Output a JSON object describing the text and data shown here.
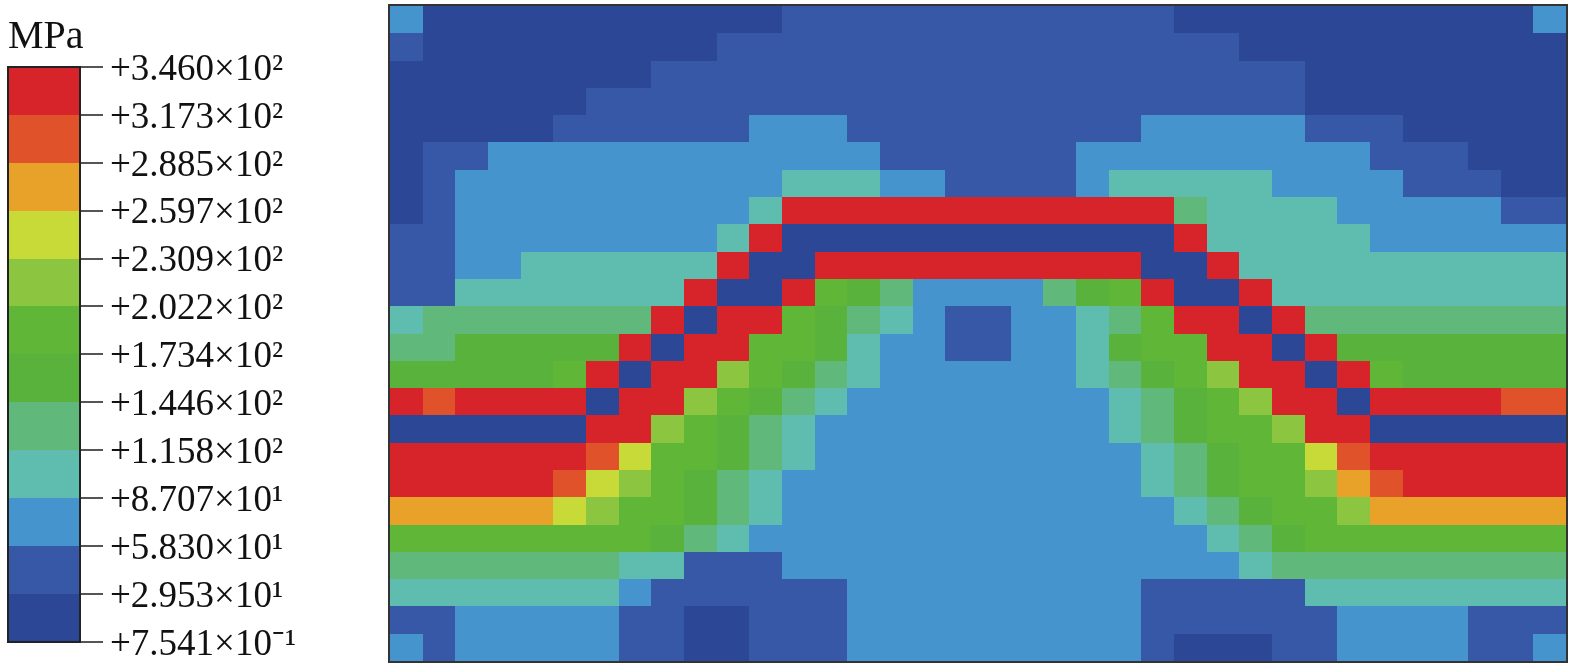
{
  "chart_data": {
    "type": "heatmap",
    "clabel": "MPa",
    "clim": [
      0.7541,
      346.0
    ],
    "cticks": [
      {
        "value": 0.7541,
        "label": "+7.541×10⁻¹"
      },
      {
        "value": 29.53,
        "label": "+2.953×10¹"
      },
      {
        "value": 58.3,
        "label": "+5.830×10¹"
      },
      {
        "value": 87.07,
        "label": "+8.707×10¹"
      },
      {
        "value": 115.8,
        "label": "+1.158×10²"
      },
      {
        "value": 144.6,
        "label": "+1.446×10²"
      },
      {
        "value": 173.4,
        "label": "+1.734×10²"
      },
      {
        "value": 202.2,
        "label": "+2.022×10²"
      },
      {
        "value": 230.9,
        "label": "+2.309×10²"
      },
      {
        "value": 259.7,
        "label": "+2.597×10²"
      },
      {
        "value": 288.5,
        "label": "+2.885×10²"
      },
      {
        "value": 317.3,
        "label": "+3.173×10²"
      },
      {
        "value": 346.0,
        "label": "+3.460×10²"
      }
    ],
    "categories": [
      null,
      null,
      null,
      null,
      null,
      null,
      null,
      null,
      null,
      null,
      null,
      null,
      null,
      null,
      null,
      null,
      null,
      null,
      null,
      null,
      null,
      null,
      null,
      null,
      null,
      null,
      null,
      null,
      null,
      null,
      null,
      null,
      null,
      null,
      null,
      null
    ],
    "y_categories": [
      null,
      null,
      null,
      null,
      null,
      null,
      null,
      null,
      null,
      null,
      null,
      null,
      null,
      null,
      null,
      null,
      null,
      null,
      null,
      null,
      null,
      null,
      null,
      null
    ],
    "cells": [
      [
        73,
        15,
        15,
        15,
        15,
        15,
        15,
        15,
        15,
        15,
        15,
        15,
        44,
        44,
        44,
        44,
        44,
        44,
        44,
        44,
        44,
        44,
        44,
        44,
        15,
        15,
        15,
        15,
        15,
        15,
        15,
        15,
        15,
        15,
        15,
        73
      ],
      [
        44,
        15,
        15,
        15,
        15,
        15,
        15,
        15,
        15,
        15,
        44,
        44,
        44,
        44,
        44,
        44,
        44,
        44,
        44,
        44,
        44,
        44,
        44,
        44,
        44,
        44,
        15,
        15,
        15,
        15,
        15,
        15,
        15,
        15,
        15,
        15
      ],
      [
        15,
        15,
        15,
        15,
        15,
        15,
        15,
        15,
        44,
        44,
        44,
        44,
        44,
        44,
        44,
        44,
        44,
        44,
        44,
        44,
        44,
        44,
        44,
        44,
        44,
        44,
        44,
        44,
        15,
        15,
        15,
        15,
        15,
        15,
        15,
        15
      ],
      [
        15,
        15,
        15,
        15,
        15,
        15,
        44,
        44,
        44,
        44,
        44,
        44,
        44,
        44,
        44,
        44,
        44,
        44,
        44,
        44,
        44,
        44,
        44,
        44,
        44,
        44,
        44,
        44,
        15,
        15,
        15,
        15,
        15,
        15,
        15,
        15
      ],
      [
        15,
        15,
        15,
        15,
        15,
        44,
        44,
        44,
        44,
        44,
        44,
        73,
        73,
        73,
        44,
        44,
        44,
        44,
        44,
        44,
        44,
        44,
        44,
        73,
        73,
        73,
        73,
        73,
        44,
        44,
        44,
        15,
        15,
        15,
        15,
        15
      ],
      [
        15,
        44,
        44,
        73,
        73,
        73,
        73,
        73,
        73,
        73,
        73,
        73,
        73,
        73,
        73,
        44,
        44,
        44,
        44,
        44,
        44,
        73,
        73,
        73,
        73,
        73,
        73,
        73,
        73,
        73,
        44,
        44,
        44,
        15,
        15,
        15
      ],
      [
        15,
        44,
        73,
        73,
        73,
        73,
        73,
        73,
        73,
        73,
        73,
        73,
        101,
        101,
        101,
        73,
        73,
        44,
        44,
        44,
        44,
        73,
        101,
        101,
        101,
        101,
        101,
        73,
        73,
        73,
        73,
        44,
        44,
        44,
        15,
        15
      ],
      [
        15,
        44,
        73,
        73,
        73,
        73,
        73,
        73,
        73,
        73,
        73,
        101,
        332,
        332,
        332,
        332,
        332,
        332,
        332,
        332,
        332,
        332,
        332,
        332,
        130,
        101,
        101,
        101,
        101,
        73,
        73,
        73,
        73,
        73,
        44,
        44
      ],
      [
        44,
        44,
        73,
        73,
        73,
        73,
        73,
        73,
        73,
        73,
        101,
        332,
        15,
        15,
        15,
        15,
        15,
        15,
        15,
        15,
        15,
        15,
        15,
        15,
        332,
        101,
        101,
        101,
        101,
        101,
        73,
        73,
        73,
        73,
        73,
        73
      ],
      [
        44,
        44,
        73,
        73,
        101,
        101,
        101,
        101,
        101,
        101,
        332,
        15,
        15,
        332,
        332,
        332,
        332,
        332,
        332,
        332,
        332,
        332,
        332,
        15,
        15,
        332,
        101,
        101,
        101,
        101,
        101,
        101,
        101,
        101,
        101,
        101
      ],
      [
        44,
        44,
        101,
        101,
        101,
        101,
        101,
        101,
        101,
        332,
        15,
        15,
        332,
        188,
        159,
        130,
        73,
        73,
        73,
        73,
        130,
        159,
        188,
        332,
        15,
        15,
        332,
        101,
        101,
        101,
        101,
        101,
        101,
        101,
        101,
        101
      ],
      [
        101,
        130,
        130,
        130,
        130,
        130,
        130,
        130,
        332,
        15,
        332,
        332,
        188,
        159,
        130,
        101,
        73,
        44,
        44,
        73,
        73,
        101,
        130,
        188,
        332,
        332,
        15,
        332,
        130,
        130,
        130,
        130,
        130,
        130,
        130,
        130
      ],
      [
        130,
        130,
        159,
        159,
        159,
        159,
        159,
        332,
        15,
        332,
        332,
        188,
        188,
        159,
        101,
        73,
        73,
        44,
        44,
        73,
        73,
        101,
        159,
        188,
        188,
        332,
        332,
        15,
        332,
        159,
        159,
        159,
        159,
        159,
        159,
        159
      ],
      [
        159,
        159,
        159,
        159,
        159,
        188,
        332,
        15,
        332,
        332,
        216,
        188,
        159,
        130,
        101,
        73,
        73,
        73,
        73,
        73,
        73,
        101,
        130,
        159,
        188,
        216,
        332,
        332,
        15,
        332,
        188,
        159,
        159,
        159,
        159,
        159
      ],
      [
        332,
        303,
        332,
        332,
        332,
        332,
        15,
        332,
        332,
        216,
        188,
        159,
        130,
        101,
        73,
        73,
        73,
        73,
        73,
        73,
        73,
        73,
        101,
        130,
        159,
        188,
        216,
        332,
        332,
        15,
        332,
        332,
        332,
        332,
        303,
        303
      ],
      [
        15,
        15,
        15,
        15,
        15,
        15,
        332,
        332,
        216,
        188,
        159,
        130,
        101,
        73,
        73,
        73,
        73,
        73,
        73,
        73,
        73,
        73,
        101,
        130,
        159,
        188,
        188,
        216,
        332,
        332,
        15,
        15,
        15,
        15,
        15,
        15
      ],
      [
        332,
        332,
        332,
        332,
        332,
        332,
        303,
        245,
        188,
        188,
        159,
        130,
        101,
        73,
        73,
        73,
        73,
        73,
        73,
        73,
        73,
        73,
        73,
        101,
        130,
        159,
        188,
        188,
        245,
        303,
        332,
        332,
        332,
        332,
        332,
        332
      ],
      [
        332,
        332,
        332,
        332,
        332,
        303,
        245,
        216,
        188,
        159,
        130,
        101,
        73,
        73,
        73,
        73,
        73,
        73,
        73,
        73,
        73,
        73,
        73,
        101,
        130,
        159,
        188,
        188,
        216,
        274,
        303,
        332,
        332,
        332,
        332,
        332
      ],
      [
        274,
        274,
        274,
        274,
        274,
        245,
        216,
        188,
        188,
        159,
        130,
        101,
        73,
        73,
        73,
        73,
        73,
        73,
        73,
        73,
        73,
        73,
        73,
        73,
        101,
        130,
        159,
        188,
        188,
        216,
        274,
        274,
        274,
        274,
        274,
        274
      ],
      [
        188,
        188,
        188,
        188,
        188,
        188,
        188,
        188,
        159,
        130,
        101,
        73,
        73,
        73,
        73,
        73,
        73,
        73,
        73,
        73,
        73,
        73,
        73,
        73,
        73,
        101,
        130,
        159,
        188,
        188,
        188,
        188,
        188,
        188,
        188,
        188
      ],
      [
        130,
        130,
        130,
        130,
        130,
        130,
        130,
        101,
        101,
        44,
        44,
        44,
        73,
        73,
        73,
        73,
        73,
        73,
        73,
        73,
        73,
        73,
        73,
        73,
        73,
        73,
        101,
        130,
        130,
        130,
        130,
        130,
        130,
        130,
        130,
        130
      ],
      [
        101,
        101,
        101,
        101,
        101,
        101,
        101,
        73,
        44,
        44,
        44,
        44,
        44,
        44,
        73,
        73,
        73,
        73,
        73,
        73,
        73,
        73,
        73,
        44,
        44,
        44,
        44,
        44,
        101,
        101,
        101,
        101,
        101,
        101,
        101,
        101
      ],
      [
        44,
        44,
        73,
        73,
        73,
        73,
        73,
        44,
        44,
        15,
        15,
        44,
        44,
        44,
        73,
        73,
        73,
        73,
        73,
        73,
        73,
        73,
        73,
        44,
        44,
        44,
        44,
        44,
        44,
        73,
        73,
        73,
        73,
        44,
        44,
        44
      ],
      [
        73,
        44,
        73,
        73,
        73,
        73,
        73,
        44,
        44,
        15,
        15,
        44,
        44,
        44,
        73,
        73,
        73,
        73,
        73,
        73,
        73,
        73,
        73,
        44,
        15,
        15,
        15,
        44,
        44,
        73,
        73,
        73,
        73,
        44,
        44,
        73
      ]
    ]
  }
}
